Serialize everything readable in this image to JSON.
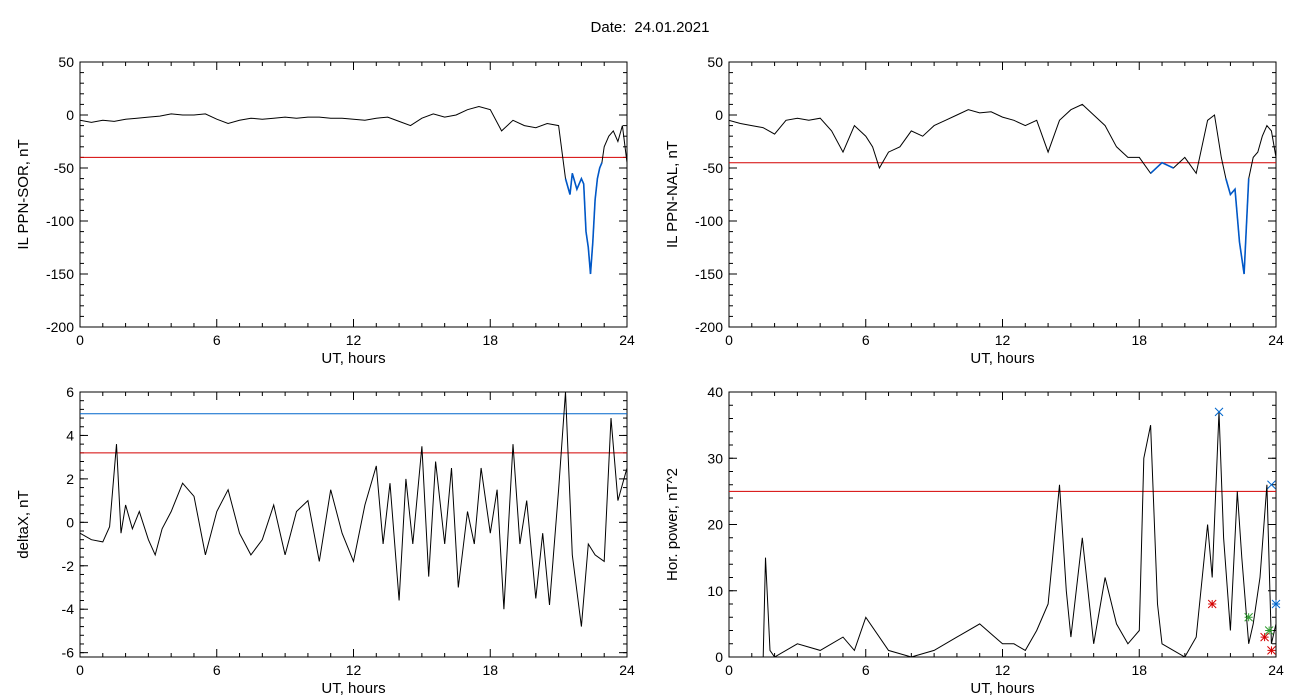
{
  "header": {
    "date_label": "Date:",
    "date_value": "24.01.2021"
  },
  "colors": {
    "trace": "#000000",
    "threshold_red": "#d40000",
    "threshold_blue": "#0066cc",
    "below_threshold": "#0058c8",
    "marker_red": "#d40000",
    "marker_green": "#2e9a2e",
    "marker_blue": "#2244cc"
  },
  "chart_data": [
    {
      "type": "line",
      "title": "",
      "xlabel": "UT, hours",
      "ylabel": "IL PPN-SOR, nT",
      "xlim": [
        0,
        24
      ],
      "ylim": [
        -200,
        50
      ],
      "xticks": [
        0,
        6,
        12,
        18,
        24
      ],
      "yticks": [
        50,
        0,
        -50,
        -100,
        -150,
        -200
      ],
      "grid": false,
      "threshold": {
        "value": -40,
        "color": "red"
      },
      "highlight_below_threshold": true,
      "series": [
        {
          "x": [
            0,
            0.5,
            1,
            1.5,
            2,
            2.5,
            3,
            3.5,
            4,
            4.5,
            5,
            5.5,
            6,
            6.5,
            7,
            7.5,
            8,
            8.5,
            9,
            9.5,
            10,
            10.5,
            11,
            11.5,
            12,
            12.5,
            13,
            13.5,
            14,
            14.5,
            15,
            15.5,
            16,
            16.5,
            17,
            17.5,
            18,
            18.5,
            19,
            19.5,
            20,
            20.5,
            21,
            21.3,
            21.5,
            21.6,
            21.8,
            22,
            22.1,
            22.2,
            22.3,
            22.4,
            22.5,
            22.6,
            22.7,
            22.8,
            22.9,
            23,
            23.2,
            23.4,
            23.6,
            23.8,
            24
          ],
          "values": [
            -5,
            -7,
            -5,
            -6,
            -4,
            -3,
            -2,
            -1,
            1,
            0,
            0,
            1,
            -4,
            -8,
            -5,
            -3,
            -4,
            -3,
            -2,
            -3,
            -2,
            -2,
            -3,
            -3,
            -4,
            -5,
            -3,
            -2,
            -6,
            -10,
            -3,
            1,
            -2,
            0,
            5,
            8,
            5,
            -15,
            -5,
            -10,
            -12,
            -8,
            -10,
            -60,
            -75,
            -55,
            -70,
            -60,
            -65,
            -110,
            -125,
            -150,
            -120,
            -80,
            -60,
            -50,
            -45,
            -30,
            -20,
            -15,
            -25,
            -10,
            -45
          ]
        }
      ]
    },
    {
      "type": "line",
      "title": "",
      "xlabel": "UT, hours",
      "ylabel": "IL PPN-NAL, nT",
      "xlim": [
        0,
        24
      ],
      "ylim": [
        -200,
        50
      ],
      "xticks": [
        0,
        6,
        12,
        18,
        24
      ],
      "yticks": [
        50,
        0,
        -50,
        -100,
        -150,
        -200
      ],
      "grid": false,
      "threshold": {
        "value": -45,
        "color": "red"
      },
      "highlight_below_threshold": true,
      "series": [
        {
          "x": [
            0,
            0.5,
            1,
            1.5,
            2,
            2.5,
            3,
            3.5,
            4,
            4.5,
            5,
            5.5,
            6,
            6.3,
            6.6,
            7,
            7.5,
            8,
            8.5,
            9,
            9.5,
            10,
            10.5,
            11,
            11.5,
            12,
            12.5,
            13,
            13.5,
            14,
            14.5,
            15,
            15.5,
            16,
            16.5,
            17,
            17.5,
            18,
            18.5,
            19,
            19.5,
            20,
            20.5,
            21,
            21.3,
            21.6,
            21.8,
            22,
            22.2,
            22.4,
            22.6,
            22.8,
            23,
            23.2,
            23.4,
            23.6,
            23.8,
            24
          ],
          "values": [
            -5,
            -8,
            -10,
            -12,
            -18,
            -5,
            -3,
            -5,
            -3,
            -15,
            -35,
            -10,
            -20,
            -30,
            -50,
            -35,
            -30,
            -15,
            -20,
            -10,
            -5,
            0,
            5,
            2,
            3,
            -2,
            -5,
            -10,
            -5,
            -35,
            -5,
            5,
            10,
            0,
            -10,
            -30,
            -40,
            -40,
            -55,
            -45,
            -50,
            -40,
            -55,
            -5,
            0,
            -40,
            -60,
            -75,
            -70,
            -120,
            -150,
            -60,
            -40,
            -35,
            -20,
            -10,
            -15,
            -40
          ]
        }
      ]
    },
    {
      "type": "line",
      "title": "",
      "xlabel": "UT, hours",
      "ylabel": "deltaX, nT",
      "xlim": [
        0,
        24
      ],
      "ylim": [
        -6.2,
        6.0
      ],
      "xticks": [
        0,
        6,
        12,
        18,
        24
      ],
      "yticks": [
        6,
        4,
        2,
        0,
        -2,
        -4,
        -6
      ],
      "grid": false,
      "thresholds": [
        {
          "value": 5.0,
          "color": "blue"
        },
        {
          "value": 3.2,
          "color": "red"
        }
      ],
      "series": [
        {
          "x": [
            0,
            0.5,
            1,
            1.3,
            1.6,
            1.8,
            2,
            2.3,
            2.6,
            3,
            3.3,
            3.6,
            4,
            4.5,
            5,
            5.5,
            6,
            6.5,
            7,
            7.5,
            8,
            8.5,
            9,
            9.5,
            10,
            10.5,
            11,
            11.5,
            12,
            12.5,
            13,
            13.3,
            13.6,
            14,
            14.3,
            14.6,
            15,
            15.3,
            15.6,
            16,
            16.3,
            16.6,
            17,
            17.3,
            17.6,
            18,
            18.3,
            18.6,
            19,
            19.3,
            19.6,
            20,
            20.3,
            20.6,
            21,
            21.3,
            21.6,
            22,
            22.3,
            22.6,
            23,
            23.3,
            23.6,
            24
          ],
          "values": [
            -0.5,
            -0.8,
            -0.9,
            -0.2,
            3.6,
            -0.5,
            0.8,
            -0.3,
            0.5,
            -0.8,
            -1.5,
            -0.3,
            0.5,
            1.8,
            1.2,
            -1.5,
            0.5,
            1.5,
            -0.5,
            -1.5,
            -0.8,
            0.8,
            -1.5,
            0.5,
            1.0,
            -1.8,
            1.5,
            -0.5,
            -1.8,
            0.8,
            2.6,
            -1.0,
            1.8,
            -3.6,
            2.0,
            -1.0,
            3.5,
            -2.5,
            2.8,
            -1.0,
            2.5,
            -3.0,
            0.5,
            -1.0,
            2.5,
            -0.5,
            1.5,
            -4.0,
            3.6,
            -1.0,
            1.0,
            -3.5,
            -0.5,
            -3.8,
            1.5,
            6.0,
            -1.5,
            -4.8,
            -1.0,
            -1.5,
            -1.8,
            4.8,
            1.0,
            2.5
          ]
        }
      ]
    },
    {
      "type": "line",
      "title": "",
      "xlabel": "UT, hours",
      "ylabel": "Hor. power, nT^2",
      "xlim": [
        0,
        24
      ],
      "ylim": [
        0,
        40
      ],
      "xticks": [
        0,
        6,
        12,
        18,
        24
      ],
      "yticks": [
        40,
        30,
        20,
        10,
        0
      ],
      "grid": false,
      "threshold": {
        "value": 25,
        "color": "red"
      },
      "series": [
        {
          "x": [
            0,
            1,
            1.5,
            1.6,
            1.8,
            2,
            3,
            4,
            5,
            5.5,
            6,
            7,
            8,
            9,
            10,
            11,
            12,
            12.5,
            13,
            13.5,
            14,
            14.2,
            14.5,
            14.8,
            15,
            15.5,
            16,
            16.5,
            17,
            17.5,
            18,
            18.2,
            18.5,
            18.8,
            19,
            19.5,
            20,
            20.5,
            21,
            21.2,
            21.5,
            21.7,
            22,
            22.3,
            22.5,
            22.8,
            23,
            23.3,
            23.6,
            23.8,
            24
          ],
          "values": [
            0,
            0,
            0,
            15,
            1,
            0,
            2,
            1,
            3,
            1,
            6,
            1,
            0,
            1,
            3,
            5,
            2,
            2,
            1,
            4,
            8,
            15,
            26,
            10,
            3,
            18,
            2,
            12,
            5,
            2,
            4,
            30,
            35,
            8,
            2,
            1,
            0,
            3,
            20,
            12,
            37,
            18,
            4,
            25,
            15,
            2,
            5,
            12,
            26,
            2,
            5
          ]
        }
      ],
      "markers": [
        {
          "type": "x",
          "color": "blue",
          "x": 21.5,
          "y": 37
        },
        {
          "type": "x",
          "color": "blue",
          "x": 23.8,
          "y": 26
        },
        {
          "type": "asterisk",
          "color": "red",
          "x": 21.2,
          "y": 8
        },
        {
          "type": "asterisk",
          "color": "green",
          "x": 22.8,
          "y": 6
        },
        {
          "type": "asterisk",
          "color": "red",
          "x": 23.5,
          "y": 3
        },
        {
          "type": "asterisk",
          "color": "green",
          "x": 23.7,
          "y": 4
        },
        {
          "type": "asterisk",
          "color": "red",
          "x": 23.8,
          "y": 1
        },
        {
          "type": "asterisk",
          "color": "blue",
          "x": 24,
          "y": 8
        }
      ]
    }
  ]
}
